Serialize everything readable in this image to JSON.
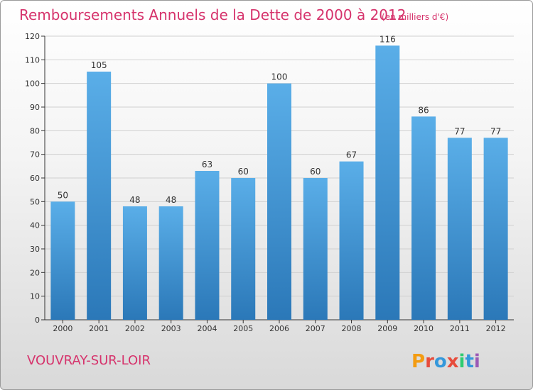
{
  "chart_data": {
    "type": "bar",
    "title": "Remboursements Annuels de la Dette de 2000 à 2012",
    "subtitle": "(en milliers d'€)",
    "categories": [
      "2000",
      "2001",
      "2002",
      "2003",
      "2004",
      "2005",
      "2006",
      "2007",
      "2008",
      "2009",
      "2010",
      "2011",
      "2012"
    ],
    "values": [
      50,
      105,
      48,
      48,
      63,
      60,
      100,
      60,
      67,
      116,
      86,
      77,
      77
    ],
    "ylim": [
      0,
      120
    ],
    "yticks": [
      0,
      10,
      20,
      30,
      40,
      50,
      60,
      70,
      80,
      90,
      100,
      110,
      120
    ],
    "grid": true,
    "xlabel": "",
    "ylabel": ""
  },
  "footer": {
    "place": "VOUVRAY-SUR-LOIR",
    "logo_text": "Proxiti"
  },
  "colors": {
    "title": "#d6336c",
    "place": "#d6336c",
    "bar_top": "#5aaee8",
    "bar_bottom": "#2b78b8",
    "logo_letters": [
      "#f39c12",
      "#e74c3c",
      "#3498db",
      "#e74c3c",
      "#2ecc71",
      "#3498db",
      "#9b59b6"
    ]
  }
}
